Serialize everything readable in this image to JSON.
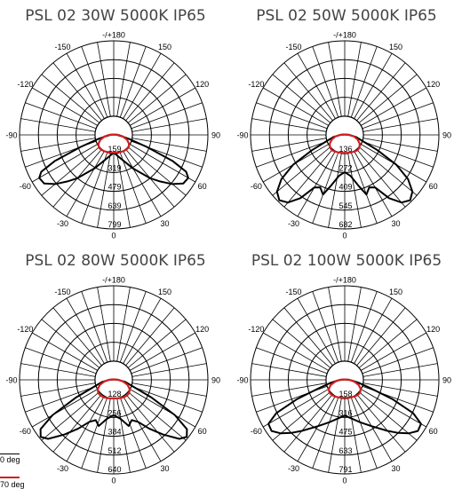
{
  "chart_data": [
    {
      "type": "polar",
      "title": "PSL 02 30W 5000K IP65",
      "angle_labels": [
        "-/+180",
        "150",
        "120",
        "90",
        "60",
        "30",
        "0",
        "-30",
        "-60",
        "-90",
        "-120",
        "-150"
      ],
      "radial_ticks": [
        "799",
        "639",
        "479",
        "319",
        "159"
      ],
      "rmax": 799,
      "series": [
        {
          "color": "#000000",
          "points": [
            [
              0,
              150
            ],
            [
              10,
              180
            ],
            [
              20,
              230
            ],
            [
              30,
              330
            ],
            [
              40,
              480
            ],
            [
              45,
              560
            ],
            [
              50,
              650
            ],
            [
              55,
              720
            ],
            [
              60,
              730
            ],
            [
              63,
              690
            ],
            [
              66,
              550
            ],
            [
              70,
              300
            ],
            [
              75,
              140
            ],
            [
              80,
              70
            ],
            [
              90,
              30
            ],
            [
              100,
              10
            ],
            [
              120,
              5
            ],
            [
              150,
              3
            ],
            [
              180,
              2
            ],
            [
              210,
              3
            ],
            [
              240,
              5
            ],
            [
              260,
              10
            ],
            [
              270,
              30
            ],
            [
              280,
              70
            ],
            [
              285,
              140
            ],
            [
              290,
              300
            ],
            [
              294,
              550
            ],
            [
              297,
              690
            ],
            [
              300,
              730
            ],
            [
              305,
              720
            ],
            [
              310,
              650
            ],
            [
              315,
              560
            ],
            [
              320,
              480
            ],
            [
              330,
              330
            ],
            [
              340,
              230
            ],
            [
              350,
              180
            ],
            [
              360,
              150
            ]
          ]
        },
        {
          "color": "#d11f1f",
          "points": [
            [
              0,
              150
            ],
            [
              10,
              152
            ],
            [
              20,
              155
            ],
            [
              30,
              160
            ],
            [
              40,
              165
            ],
            [
              50,
              165
            ],
            [
              60,
              150
            ],
            [
              70,
              120
            ],
            [
              80,
              80
            ],
            [
              90,
              40
            ],
            [
              100,
              15
            ],
            [
              120,
              6
            ],
            [
              150,
              3
            ],
            [
              180,
              2
            ],
            [
              210,
              3
            ],
            [
              240,
              6
            ],
            [
              260,
              15
            ],
            [
              270,
              40
            ],
            [
              280,
              80
            ],
            [
              290,
              120
            ],
            [
              300,
              150
            ],
            [
              310,
              165
            ],
            [
              320,
              165
            ],
            [
              330,
              160
            ],
            [
              340,
              155
            ],
            [
              350,
              152
            ],
            [
              360,
              150
            ]
          ]
        }
      ]
    },
    {
      "type": "polar",
      "title": "PSL 02 50W 5000K IP65",
      "angle_labels": [
        "-/+180",
        "150",
        "120",
        "90",
        "60",
        "30",
        "0",
        "-30",
        "-60",
        "-90",
        "-120",
        "-150"
      ],
      "radial_ticks": [
        "682",
        "545",
        "409",
        "272",
        "136"
      ],
      "rmax": 682,
      "series": [
        {
          "color": "#000000",
          "points": [
            [
              0,
              270
            ],
            [
              8,
              300
            ],
            [
              15,
              380
            ],
            [
              20,
              460
            ],
            [
              25,
              420
            ],
            [
              30,
              440
            ],
            [
              35,
              560
            ],
            [
              40,
              640
            ],
            [
              45,
              670
            ],
            [
              50,
              640
            ],
            [
              55,
              560
            ],
            [
              60,
              430
            ],
            [
              65,
              260
            ],
            [
              70,
              150
            ],
            [
              80,
              80
            ],
            [
              90,
              30
            ],
            [
              100,
              10
            ],
            [
              120,
              5
            ],
            [
              150,
              3
            ],
            [
              180,
              2
            ],
            [
              210,
              3
            ],
            [
              240,
              5
            ],
            [
              260,
              10
            ],
            [
              270,
              30
            ],
            [
              280,
              80
            ],
            [
              290,
              150
            ],
            [
              295,
              260
            ],
            [
              300,
              430
            ],
            [
              305,
              560
            ],
            [
              310,
              640
            ],
            [
              315,
              670
            ],
            [
              320,
              640
            ],
            [
              325,
              560
            ],
            [
              330,
              440
            ],
            [
              335,
              420
            ],
            [
              340,
              460
            ],
            [
              345,
              380
            ],
            [
              352,
              300
            ],
            [
              360,
              270
            ]
          ]
        },
        {
          "color": "#d11f1f",
          "points": [
            [
              0,
              130
            ],
            [
              10,
              132
            ],
            [
              20,
              135
            ],
            [
              30,
              140
            ],
            [
              40,
              145
            ],
            [
              50,
              140
            ],
            [
              60,
              125
            ],
            [
              70,
              100
            ],
            [
              80,
              70
            ],
            [
              90,
              35
            ],
            [
              100,
              15
            ],
            [
              120,
              6
            ],
            [
              150,
              3
            ],
            [
              180,
              2
            ],
            [
              210,
              3
            ],
            [
              240,
              6
            ],
            [
              260,
              15
            ],
            [
              270,
              35
            ],
            [
              280,
              70
            ],
            [
              290,
              100
            ],
            [
              300,
              125
            ],
            [
              310,
              140
            ],
            [
              320,
              145
            ],
            [
              330,
              140
            ],
            [
              340,
              135
            ],
            [
              350,
              132
            ],
            [
              360,
              130
            ]
          ]
        }
      ]
    },
    {
      "type": "polar",
      "title": "PSL 02 80W 5000K IP65",
      "angle_labels": [
        "-/+180",
        "150",
        "120",
        "90",
        "60",
        "30",
        "0",
        "-30",
        "-60",
        "-90",
        "-120",
        "-150"
      ],
      "radial_ticks": [
        "640",
        "512",
        "384",
        "256",
        "128"
      ],
      "rmax": 640,
      "series": [
        {
          "color": "#000000",
          "points": [
            [
              0,
              240
            ],
            [
              10,
              270
            ],
            [
              18,
              330
            ],
            [
              24,
              300
            ],
            [
              30,
              330
            ],
            [
              36,
              410
            ],
            [
              42,
              500
            ],
            [
              48,
              600
            ],
            [
              52,
              630
            ],
            [
              56,
              600
            ],
            [
              60,
              480
            ],
            [
              65,
              280
            ],
            [
              70,
              150
            ],
            [
              80,
              80
            ],
            [
              90,
              30
            ],
            [
              100,
              10
            ],
            [
              120,
              5
            ],
            [
              150,
              3
            ],
            [
              180,
              2
            ],
            [
              210,
              3
            ],
            [
              240,
              5
            ],
            [
              260,
              10
            ],
            [
              270,
              30
            ],
            [
              280,
              80
            ],
            [
              290,
              150
            ],
            [
              295,
              280
            ],
            [
              300,
              480
            ],
            [
              304,
              600
            ],
            [
              308,
              630
            ],
            [
              312,
              600
            ],
            [
              318,
              500
            ],
            [
              324,
              410
            ],
            [
              330,
              330
            ],
            [
              336,
              300
            ],
            [
              342,
              330
            ],
            [
              350,
              270
            ],
            [
              360,
              240
            ]
          ]
        },
        {
          "color": "#d11f1f",
          "points": [
            [
              0,
              125
            ],
            [
              10,
              128
            ],
            [
              20,
              132
            ],
            [
              30,
              136
            ],
            [
              40,
              140
            ],
            [
              50,
              138
            ],
            [
              60,
              125
            ],
            [
              70,
              100
            ],
            [
              80,
              65
            ],
            [
              90,
              32
            ],
            [
              100,
              14
            ],
            [
              120,
              6
            ],
            [
              150,
              3
            ],
            [
              180,
              2
            ],
            [
              210,
              3
            ],
            [
              240,
              6
            ],
            [
              260,
              14
            ],
            [
              270,
              32
            ],
            [
              280,
              65
            ],
            [
              290,
              100
            ],
            [
              300,
              125
            ],
            [
              310,
              138
            ],
            [
              320,
              140
            ],
            [
              330,
              136
            ],
            [
              340,
              132
            ],
            [
              350,
              128
            ],
            [
              360,
              125
            ]
          ]
        }
      ]
    },
    {
      "type": "polar",
      "title": "PSL 02 100W 5000K IP65",
      "angle_labels": [
        "-/+180",
        "150",
        "120",
        "90",
        "60",
        "30",
        "0",
        "-30",
        "-60",
        "-90",
        "-120",
        "-150"
      ],
      "radial_ticks": [
        "791",
        "633",
        "475",
        "316",
        "158"
      ],
      "rmax": 791,
      "series": [
        {
          "color": "#000000",
          "points": [
            [
              0,
              300
            ],
            [
              10,
              330
            ],
            [
              20,
              380
            ],
            [
              30,
              450
            ],
            [
              40,
              560
            ],
            [
              45,
              630
            ],
            [
              50,
              700
            ],
            [
              55,
              750
            ],
            [
              60,
              740
            ],
            [
              64,
              640
            ],
            [
              68,
              430
            ],
            [
              72,
              230
            ],
            [
              78,
              120
            ],
            [
              85,
              60
            ],
            [
              90,
              30
            ],
            [
              100,
              10
            ],
            [
              120,
              5
            ],
            [
              150,
              3
            ],
            [
              180,
              2
            ],
            [
              210,
              3
            ],
            [
              240,
              5
            ],
            [
              260,
              10
            ],
            [
              270,
              30
            ],
            [
              275,
              60
            ],
            [
              282,
              120
            ],
            [
              288,
              230
            ],
            [
              292,
              430
            ],
            [
              296,
              640
            ],
            [
              300,
              740
            ],
            [
              305,
              750
            ],
            [
              310,
              700
            ],
            [
              315,
              630
            ],
            [
              320,
              560
            ],
            [
              330,
              450
            ],
            [
              340,
              380
            ],
            [
              350,
              330
            ],
            [
              360,
              300
            ]
          ]
        },
        {
          "color": "#d11f1f",
          "points": [
            [
              0,
              150
            ],
            [
              10,
              153
            ],
            [
              20,
              157
            ],
            [
              30,
              162
            ],
            [
              40,
              168
            ],
            [
              50,
              168
            ],
            [
              60,
              155
            ],
            [
              70,
              125
            ],
            [
              80,
              80
            ],
            [
              90,
              40
            ],
            [
              100,
              15
            ],
            [
              120,
              6
            ],
            [
              150,
              3
            ],
            [
              180,
              2
            ],
            [
              210,
              3
            ],
            [
              240,
              6
            ],
            [
              260,
              15
            ],
            [
              270,
              40
            ],
            [
              280,
              80
            ],
            [
              290,
              125
            ],
            [
              300,
              155
            ],
            [
              310,
              168
            ],
            [
              320,
              168
            ],
            [
              330,
              162
            ],
            [
              340,
              157
            ],
            [
              350,
              153
            ],
            [
              360,
              150
            ]
          ]
        }
      ]
    }
  ],
  "legend": {
    "items": [
      {
        "label": "0 deg",
        "color": "#000000"
      },
      {
        "label": "70 deg",
        "color": "#d11f1f"
      }
    ]
  }
}
